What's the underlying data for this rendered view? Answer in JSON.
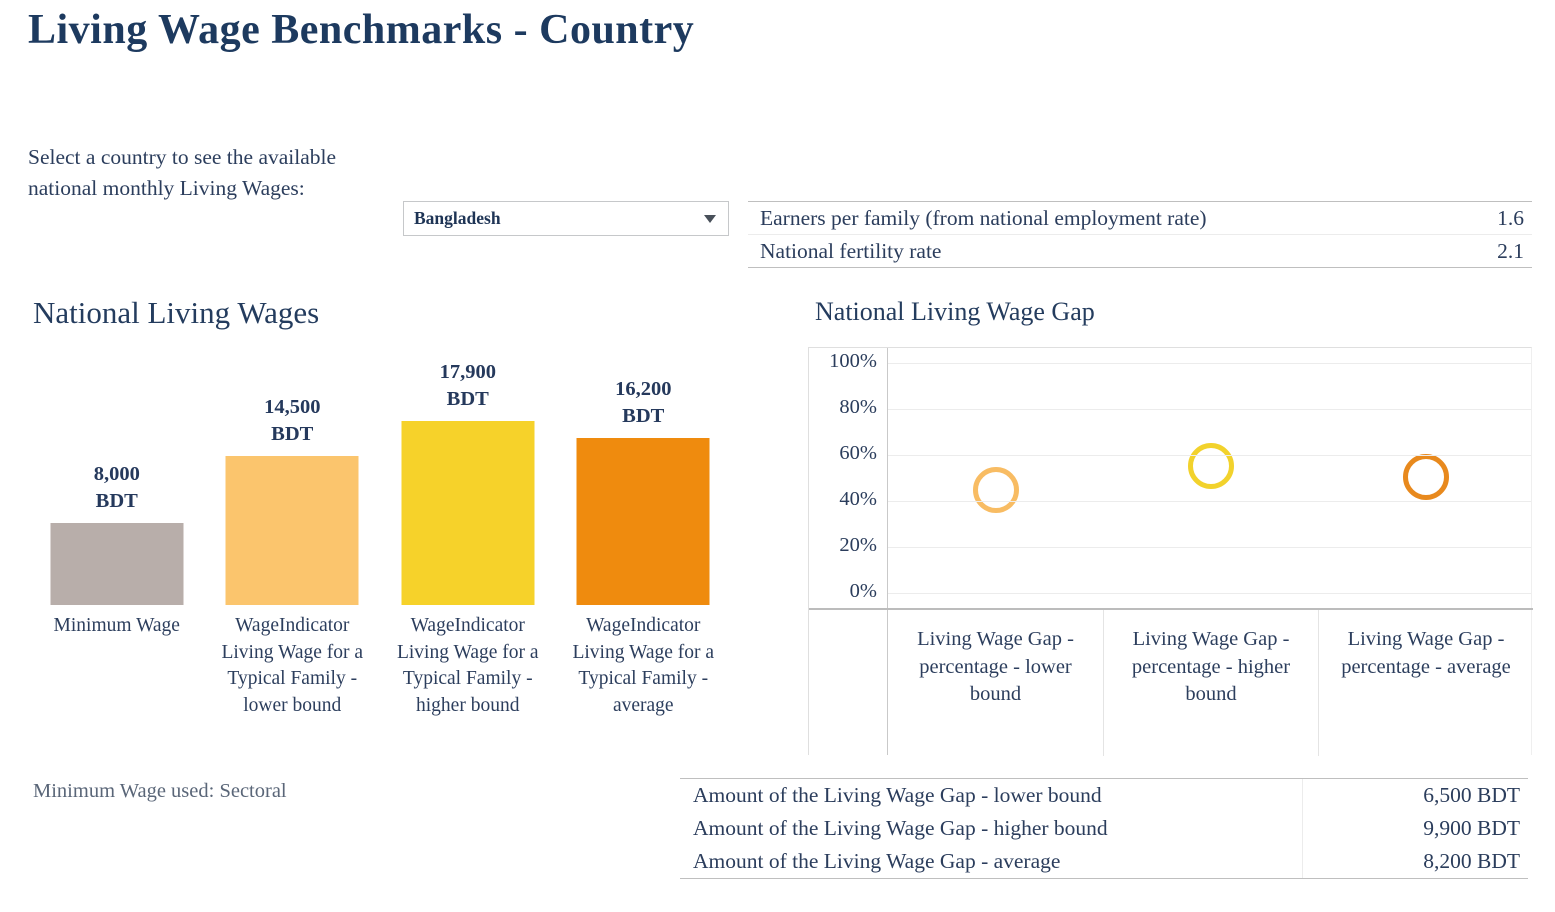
{
  "header": {
    "title": "Living Wage Benchmarks - Country"
  },
  "selector": {
    "instruction_lines": [
      "Select a country to see the available",
      "national monthly Living Wages:"
    ],
    "value": "Bangladesh",
    "icon": "caret-down-icon"
  },
  "family_stats": {
    "rows": [
      {
        "label": "Earners per family (from national employment rate)",
        "value": "1.6"
      },
      {
        "label": "National fertility rate",
        "value": "2.1"
      }
    ]
  },
  "chart_data": [
    {
      "type": "bar",
      "title": "National Living Wages",
      "categories": [
        "Minimum Wage",
        "WageIndicator Living Wage for a Typical Family - lower bound",
        "WageIndicator Living Wage for a Typical Family - higher bound",
        "WageIndicator Living Wage for a Typical Family - average"
      ],
      "values": [
        8000,
        14500,
        17900,
        16200
      ],
      "unit": "BDT",
      "bars": [
        {
          "amount": "8,000",
          "unit": "BDT",
          "color": "#b8aeaa"
        },
        {
          "amount": "14,500",
          "unit": "BDT",
          "color": "#fbc56d"
        },
        {
          "amount": "17,900",
          "unit": "BDT",
          "color": "#f6d22a"
        },
        {
          "amount": "16,200",
          "unit": "BDT",
          "color": "#ef8b0e"
        }
      ],
      "xlabel": "",
      "ylabel": "",
      "grid": false,
      "axis_hidden": true,
      "footnote": "Minimum Wage used: Sectoral"
    },
    {
      "type": "scatter",
      "title": "National Living Wage Gap",
      "categories": [
        "Living Wage Gap - percentage - lower bound",
        "Living Wage Gap - percentage - higher bound",
        "Living Wage Gap - percentage - average"
      ],
      "values_percent": [
        44.8,
        55.3,
        50.6
      ],
      "marker": "open-circle",
      "marker_colors": [
        "#f8bc63",
        "#f2d22c",
        "#e8891d"
      ],
      "ylim": [
        0,
        100
      ],
      "y_ticks": [
        {
          "label": "0%",
          "value": 0
        },
        {
          "label": "20%",
          "value": 20
        },
        {
          "label": "40%",
          "value": 40
        },
        {
          "label": "60%",
          "value": 60
        },
        {
          "label": "80%",
          "value": 80
        },
        {
          "label": "100%",
          "value": 100
        }
      ],
      "grid": true,
      "legend": "none"
    }
  ],
  "gap_table": {
    "rows": [
      {
        "label": "Amount of the Living Wage Gap - lower bound",
        "value": "6,500 BDT"
      },
      {
        "label": "Amount of the Living Wage Gap - higher bound",
        "value": "9,900 BDT"
      },
      {
        "label": "Amount of the Living Wage Gap - average",
        "value": "8,200 BDT"
      }
    ]
  }
}
